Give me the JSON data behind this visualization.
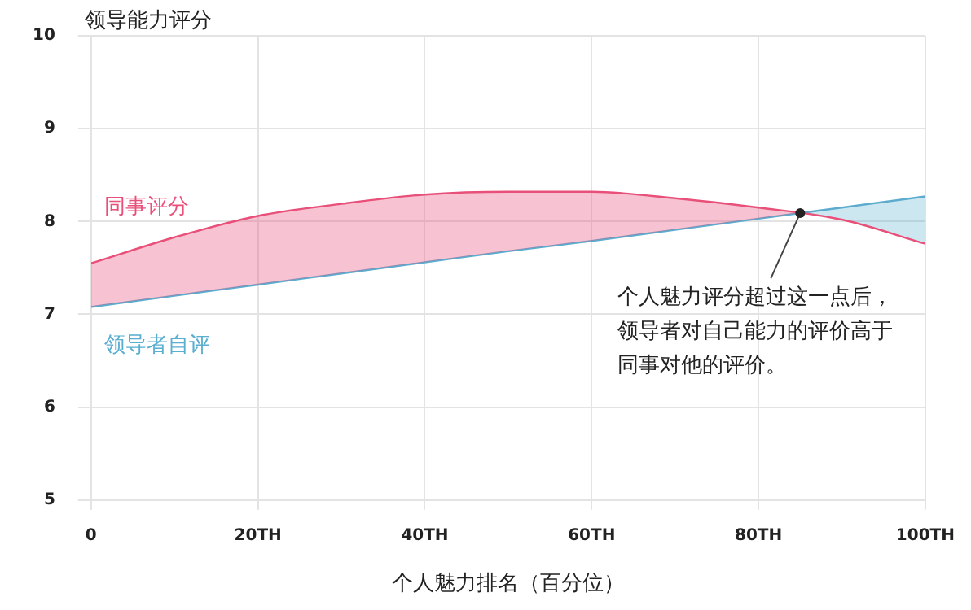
{
  "chart_data": {
    "type": "line",
    "ylabel": "领导能力评分",
    "xlabel": "个人魅力排名（百分位）",
    "x": [
      0,
      10,
      20,
      30,
      40,
      50,
      60,
      70,
      80,
      90,
      100
    ],
    "series": [
      {
        "name": "同事评分",
        "color": "#e8507a",
        "values": [
          7.55,
          7.83,
          8.06,
          8.19,
          8.29,
          8.32,
          8.32,
          8.25,
          8.15,
          8.02,
          7.76
        ]
      },
      {
        "name": "领导者自评",
        "color": "#5aaed0",
        "values": [
          7.08,
          7.2,
          7.32,
          7.44,
          7.56,
          7.68,
          7.79,
          7.91,
          8.03,
          8.15,
          8.27
        ]
      }
    ],
    "xlim": [
      0,
      100
    ],
    "xticks": [
      0,
      {
        "value": 20,
        "label": "20TH"
      },
      {
        "value": 40,
        "label": "40TH"
      },
      {
        "value": 60,
        "label": "60TH"
      },
      {
        "value": 80,
        "label": "80TH"
      },
      {
        "value": 100,
        "label": "100TH"
      }
    ],
    "ylim": [
      5,
      10
    ],
    "yticks": [
      5,
      6,
      7,
      8,
      9,
      10
    ],
    "grid": true,
    "legend": false,
    "marker": "none",
    "line_style": "solid",
    "annotations": [
      {
        "text": "个人魅力评分超过这一点后，领导者对自己能力的评价高于同事对他的评价。",
        "x": 85,
        "y": 8.09
      }
    ]
  }
}
